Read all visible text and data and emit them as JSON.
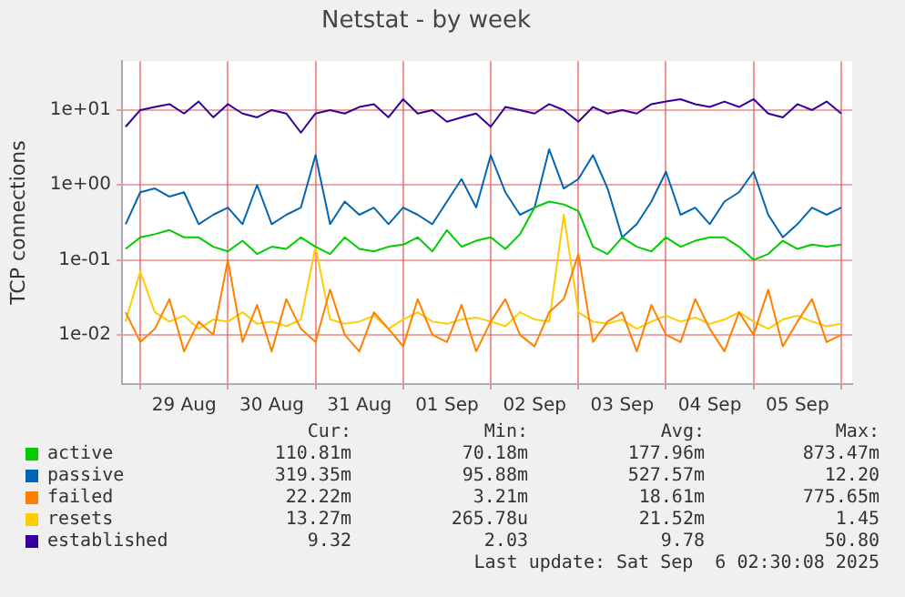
{
  "chart_data": {
    "type": "line",
    "title": "Netstat - by week",
    "ylabel": "TCP connections",
    "log": "y",
    "grid": true,
    "marker": "none",
    "legend": "bottom",
    "xlim": [
      "2025-08-28T19:00",
      "2025-09-06T03:00"
    ],
    "xticks": [
      {
        "value": "2025-08-29T00:00",
        "label": null
      },
      {
        "value": "2025-08-29T12:00",
        "label": "29 Aug"
      },
      {
        "value": "2025-08-30T00:00",
        "label": null
      },
      {
        "value": "2025-08-30T12:00",
        "label": "30 Aug"
      },
      {
        "value": "2025-08-31T00:00",
        "label": null
      },
      {
        "value": "2025-08-31T12:00",
        "label": "31 Aug"
      },
      {
        "value": "2025-09-01T00:00",
        "label": null
      },
      {
        "value": "2025-09-01T12:00",
        "label": "01 Sep"
      },
      {
        "value": "2025-09-02T00:00",
        "label": null
      },
      {
        "value": "2025-09-02T12:00",
        "label": "02 Sep"
      },
      {
        "value": "2025-09-03T00:00",
        "label": null
      },
      {
        "value": "2025-09-03T12:00",
        "label": "03 Sep"
      },
      {
        "value": "2025-09-04T00:00",
        "label": null
      },
      {
        "value": "2025-09-04T12:00",
        "label": "04 Sep"
      },
      {
        "value": "2025-09-05T00:00",
        "label": null
      },
      {
        "value": "2025-09-05T12:00",
        "label": "05 Sep"
      },
      {
        "value": "2025-09-06T00:00",
        "label": null
      }
    ],
    "ylim": [
      0.0022,
      45
    ],
    "yticks": [
      {
        "value": 0.01,
        "label": "1e-02"
      },
      {
        "value": 0.1,
        "label": "1e-01"
      },
      {
        "value": 1,
        "label": "1e+00"
      },
      {
        "value": 10,
        "label": "1e+01"
      }
    ],
    "x": [
      "2025-08-28T20:00",
      "2025-08-29T00:00",
      "2025-08-29T04:00",
      "2025-08-29T08:00",
      "2025-08-29T12:00",
      "2025-08-29T16:00",
      "2025-08-29T20:00",
      "2025-08-30T00:00",
      "2025-08-30T04:00",
      "2025-08-30T08:00",
      "2025-08-30T12:00",
      "2025-08-30T16:00",
      "2025-08-30T20:00",
      "2025-08-31T00:00",
      "2025-08-31T04:00",
      "2025-08-31T08:00",
      "2025-08-31T12:00",
      "2025-08-31T16:00",
      "2025-08-31T20:00",
      "2025-09-01T00:00",
      "2025-09-01T04:00",
      "2025-09-01T08:00",
      "2025-09-01T12:00",
      "2025-09-01T16:00",
      "2025-09-01T20:00",
      "2025-09-02T00:00",
      "2025-09-02T04:00",
      "2025-09-02T08:00",
      "2025-09-02T12:00",
      "2025-09-02T16:00",
      "2025-09-02T20:00",
      "2025-09-03T00:00",
      "2025-09-03T04:00",
      "2025-09-03T08:00",
      "2025-09-03T12:00",
      "2025-09-03T16:00",
      "2025-09-03T20:00",
      "2025-09-04T00:00",
      "2025-09-04T04:00",
      "2025-09-04T08:00",
      "2025-09-04T12:00",
      "2025-09-04T16:00",
      "2025-09-04T20:00",
      "2025-09-05T00:00",
      "2025-09-05T04:00",
      "2025-09-05T08:00",
      "2025-09-05T12:00",
      "2025-09-05T16:00",
      "2025-09-05T20:00",
      "2025-09-06T00:00"
    ],
    "series": [
      {
        "name": "active",
        "color": "#00cc00",
        "values": [
          0.14,
          0.2,
          0.22,
          0.25,
          0.2,
          0.2,
          0.15,
          0.13,
          0.18,
          0.12,
          0.15,
          0.14,
          0.2,
          0.15,
          0.12,
          0.2,
          0.14,
          0.13,
          0.15,
          0.16,
          0.2,
          0.13,
          0.25,
          0.15,
          0.18,
          0.2,
          0.14,
          0.22,
          0.5,
          0.6,
          0.55,
          0.45,
          0.15,
          0.12,
          0.2,
          0.15,
          0.13,
          0.2,
          0.15,
          0.18,
          0.2,
          0.2,
          0.15,
          0.1,
          0.12,
          0.18,
          0.14,
          0.16,
          0.15,
          0.16
        ]
      },
      {
        "name": "passive",
        "color": "#0066b3",
        "values": [
          0.3,
          0.8,
          0.9,
          0.7,
          0.8,
          0.3,
          0.4,
          0.5,
          0.3,
          1.0,
          0.3,
          0.4,
          0.5,
          2.5,
          0.3,
          0.6,
          0.4,
          0.5,
          0.3,
          0.5,
          0.4,
          0.3,
          0.6,
          1.2,
          0.5,
          2.5,
          0.8,
          0.4,
          0.5,
          3.0,
          0.9,
          1.2,
          2.5,
          0.9,
          0.2,
          0.3,
          0.6,
          1.5,
          0.4,
          0.5,
          0.3,
          0.6,
          0.8,
          1.5,
          0.4,
          0.2,
          0.3,
          0.5,
          0.4,
          0.5
        ]
      },
      {
        "name": "failed",
        "color": "#ff8000",
        "values": [
          0.02,
          0.008,
          0.012,
          0.03,
          0.006,
          0.015,
          0.01,
          0.1,
          0.008,
          0.025,
          0.006,
          0.03,
          0.012,
          0.008,
          0.04,
          0.01,
          0.006,
          0.02,
          0.012,
          0.007,
          0.03,
          0.01,
          0.008,
          0.025,
          0.006,
          0.015,
          0.03,
          0.01,
          0.007,
          0.02,
          0.03,
          0.12,
          0.008,
          0.015,
          0.02,
          0.006,
          0.025,
          0.01,
          0.008,
          0.03,
          0.012,
          0.006,
          0.02,
          0.01,
          0.04,
          0.007,
          0.015,
          0.03,
          0.008,
          0.01
        ]
      },
      {
        "name": "resets",
        "color": "#ffcc00",
        "values": [
          0.015,
          0.07,
          0.02,
          0.015,
          0.018,
          0.012,
          0.016,
          0.015,
          0.02,
          0.014,
          0.015,
          0.013,
          0.016,
          0.15,
          0.016,
          0.014,
          0.015,
          0.018,
          0.012,
          0.016,
          0.02,
          0.015,
          0.014,
          0.016,
          0.017,
          0.015,
          0.013,
          0.02,
          0.016,
          0.015,
          0.4,
          0.02,
          0.015,
          0.014,
          0.016,
          0.012,
          0.015,
          0.018,
          0.015,
          0.017,
          0.014,
          0.016,
          0.02,
          0.015,
          0.012,
          0.016,
          0.018,
          0.015,
          0.013,
          0.014
        ]
      },
      {
        "name": "established",
        "color": "#330099",
        "values": [
          6,
          10,
          11,
          12,
          9,
          13,
          8,
          12,
          9,
          8,
          10,
          9,
          5,
          9,
          10,
          9,
          11,
          12,
          8,
          14,
          9,
          10,
          7,
          8,
          9,
          6,
          11,
          10,
          9,
          12,
          10,
          7,
          11,
          9,
          10,
          9,
          12,
          13,
          14,
          12,
          11,
          13,
          11,
          14,
          9,
          8,
          12,
          10,
          13,
          9
        ]
      }
    ],
    "annotations": [
      "Cur:",
      "Min:",
      "Avg:",
      "Max:",
      "110.81m",
      "70.18m",
      "177.96m",
      "873.47m",
      "319.35m",
      "95.88m",
      "527.57m",
      "12.20",
      "22.22m",
      "3.21m",
      "18.61m",
      "775.65m",
      "13.27m",
      "265.78u",
      "21.52m",
      "1.45",
      "9.32",
      "2.03",
      "9.78",
      "50.80",
      "Last update: Sat Sep  6 02:30:08 2025"
    ]
  }
}
